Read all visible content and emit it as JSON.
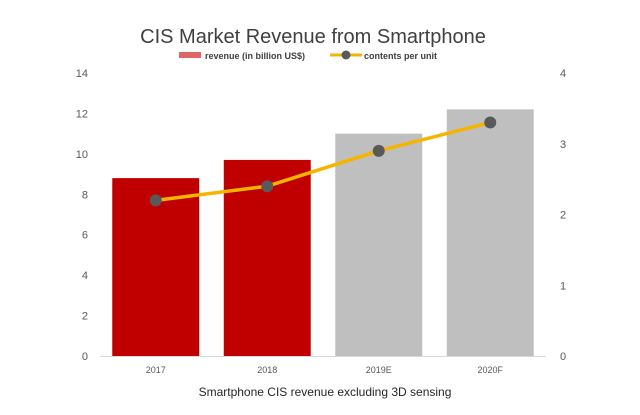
{
  "chart_data": {
    "type": "bar",
    "title": "CIS Market Revenue from Smartphone",
    "xlabel": "Smartphone CIS revenue excluding 3D sensing",
    "ylabel": "",
    "y2label": "",
    "categories": [
      "2017",
      "2018",
      "2019E",
      "2020F"
    ],
    "ylim": [
      0,
      14
    ],
    "y2lim": [
      0,
      4
    ],
    "yticks": [
      "0",
      "2",
      "4",
      "6",
      "8",
      "10",
      "12",
      "14"
    ],
    "y2ticks": [
      "0",
      "1",
      "2",
      "3",
      "4"
    ],
    "grid": false,
    "legend_position": "top-center",
    "series": [
      {
        "name": "revenue (in billion US$)",
        "type": "bar",
        "axis": "left",
        "values": [
          8.8,
          9.7,
          11.0,
          12.2
        ],
        "colors": [
          "#c00000",
          "#c00000",
          "#bfbfbf",
          "#bfbfbf"
        ],
        "legend_color": "#e06666"
      },
      {
        "name": "contents per unit",
        "type": "line",
        "axis": "right",
        "values": [
          2.2,
          2.4,
          2.9,
          3.3
        ],
        "line_color": "#f5b400",
        "marker_color": "#595959"
      }
    ]
  }
}
